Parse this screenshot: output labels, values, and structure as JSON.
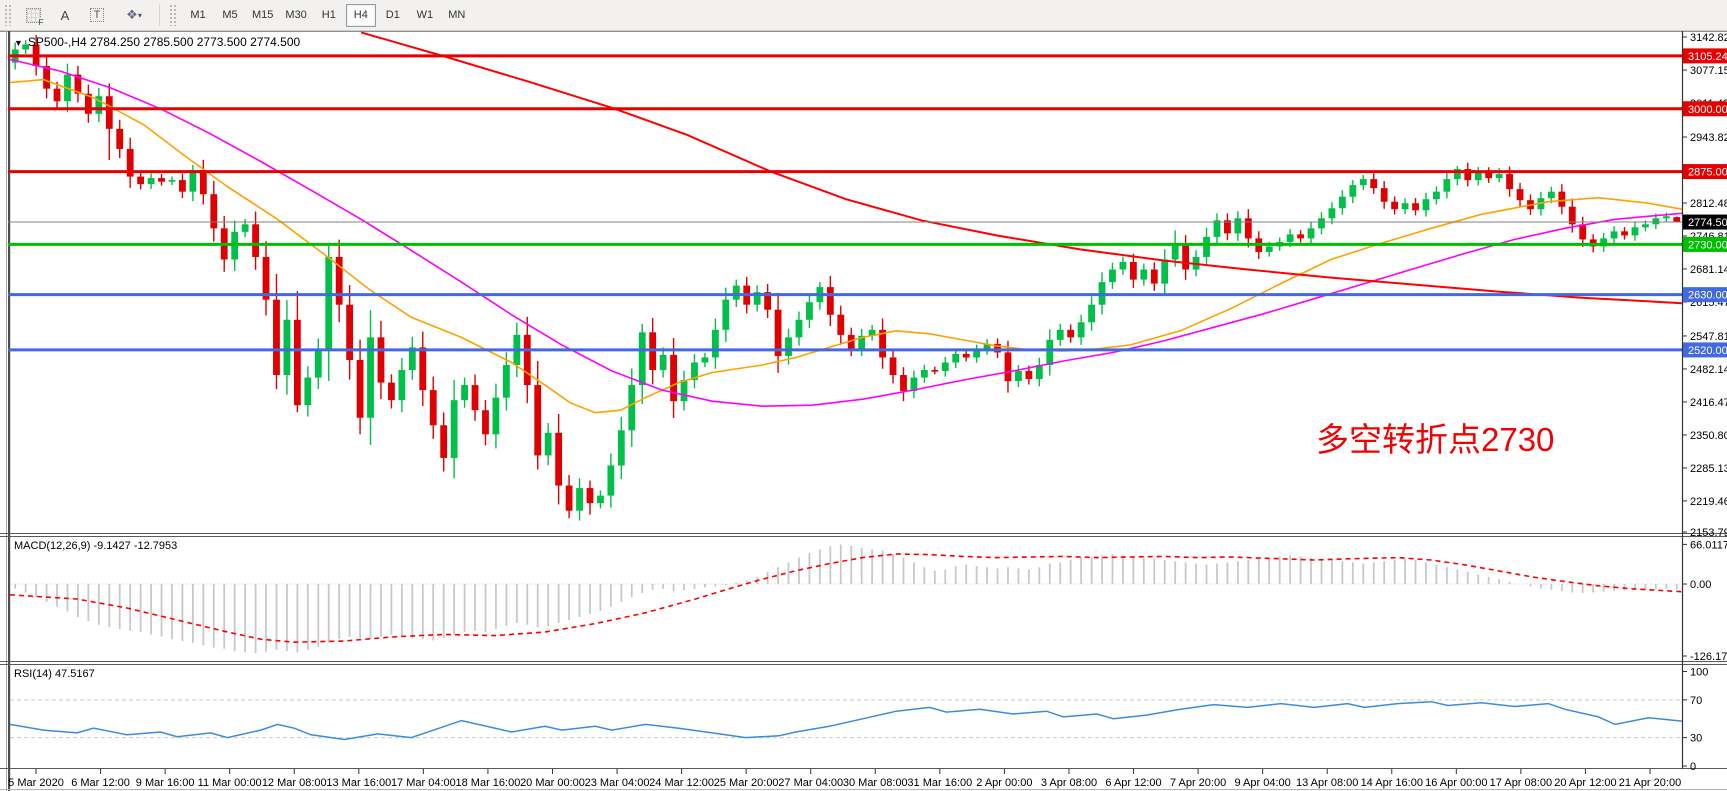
{
  "toolbar": {
    "icons": {
      "grid_f": "F",
      "a_label": "A",
      "t_label": "T",
      "objects": "❖",
      "caret": "▾"
    },
    "timeframes": [
      "M1",
      "M5",
      "M15",
      "M30",
      "H1",
      "H4",
      "D1",
      "W1",
      "MN"
    ],
    "active_timeframe": "H4"
  },
  "header": {
    "dropdown_glyph": "▼",
    "symbol_line": "SP500-,H4  2784.250 2785.500 2773.500 2774.500"
  },
  "annotation": {
    "text": "多空转折点2730",
    "color": "#f40000"
  },
  "macd_panel": {
    "label": "MACD(12,26,9) -9.1427 -12.7953",
    "axis_labels": [
      "66.0117",
      "0.00",
      "-126.173"
    ]
  },
  "rsi_panel": {
    "label": "RSI(14) 47.5167",
    "axis_labels": [
      "100",
      "70",
      "30",
      "0"
    ]
  },
  "chart_data": {
    "type": "candlestick",
    "symbol": "SP500-",
    "timeframe": "H4",
    "current_ohlc": {
      "open": 2784.25,
      "high": 2785.5,
      "low": 2773.5,
      "close": 2774.5
    },
    "ylim": [
      2153.79,
      3150.8
    ],
    "price_axis_ticks": [
      {
        "label": "3142.820",
        "p": 3142.82
      },
      {
        "label": "3077.150",
        "p": 3077.15
      },
      {
        "label": "3011.490",
        "p": 3011.49
      },
      {
        "label": "2943.820",
        "p": 2943.82
      },
      {
        "label": "2812.480",
        "p": 2812.48
      },
      {
        "label": "2746.810",
        "p": 2746.81
      },
      {
        "label": "2681.140",
        "p": 2681.14
      },
      {
        "label": "2615.470",
        "p": 2615.47
      },
      {
        "label": "2547.810",
        "p": 2547.81
      },
      {
        "label": "2482.140",
        "p": 2482.14
      },
      {
        "label": "2416.470",
        "p": 2416.47
      },
      {
        "label": "2350.800",
        "p": 2350.8
      },
      {
        "label": "2285.130",
        "p": 2285.13
      },
      {
        "label": "2219.460",
        "p": 2219.46
      },
      {
        "label": "2153.790",
        "p": 2157.5
      }
    ],
    "price_badges": [
      {
        "label": "3105.244",
        "p": 3105.244,
        "bg": "#e80000",
        "fg": "#ffffff"
      },
      {
        "label": "3000.000",
        "p": 3000.0,
        "bg": "#e80000",
        "fg": "#ffffff"
      },
      {
        "label": "2875.000",
        "p": 2875.0,
        "bg": "#e80000",
        "fg": "#ffffff"
      },
      {
        "label": "2774.500",
        "p": 2774.5,
        "bg": "#000000",
        "fg": "#ffffff"
      },
      {
        "label": "2730.000",
        "p": 2730.0,
        "bg": "#00be00",
        "fg": "#ffffff"
      },
      {
        "label": "2630.000",
        "p": 2630.0,
        "bg": "#4169e1",
        "fg": "#ffffff"
      },
      {
        "label": "2520.000",
        "p": 2520.0,
        "bg": "#4169e1",
        "fg": "#ffffff"
      }
    ],
    "level_lines": [
      {
        "p": 3105.244,
        "color": "#e80000",
        "w": 3
      },
      {
        "p": 3000.0,
        "color": "#e80000",
        "w": 3
      },
      {
        "p": 2875.0,
        "color": "#e80000",
        "w": 3
      },
      {
        "p": 2730.0,
        "color": "#00be00",
        "w": 3
      },
      {
        "p": 2630.0,
        "color": "#4169e1",
        "w": 3
      },
      {
        "p": 2520.0,
        "color": "#4169e1",
        "w": 3
      }
    ],
    "current_price_line": {
      "p": 2774.5,
      "color": "#808080",
      "w": 1
    },
    "colors": {
      "up": "#00c04a",
      "down": "#e00000",
      "ma_fast": "#ffa200",
      "ma_mid": "#ff00ff",
      "ma_slow": "#ff0000",
      "macd_bar": "#c8c8c8",
      "macd_signal": "#ff0000",
      "rsi": "#3c8bdc"
    },
    "candles": {
      "first_open": 3092,
      "closes": [
        3118,
        3128,
        3085,
        3040,
        3015,
        3068,
        3030,
        2990,
        3025,
        2960,
        2920,
        2865,
        2850,
        2862,
        2855,
        2858,
        2835,
        2878,
        2830,
        2762,
        2700,
        2755,
        2770,
        2705,
        2620,
        2470,
        2580,
        2410,
        2465,
        2520,
        2705,
        2610,
        2500,
        2385,
        2545,
        2455,
        2420,
        2480,
        2525,
        2440,
        2370,
        2305,
        2420,
        2450,
        2400,
        2352,
        2425,
        2490,
        2550,
        2450,
        2310,
        2355,
        2250,
        2200,
        2245,
        2215,
        2230,
        2290,
        2360,
        2450,
        2555,
        2480,
        2510,
        2418,
        2460,
        2495,
        2505,
        2560,
        2620,
        2648,
        2610,
        2635,
        2600,
        2508,
        2545,
        2580,
        2615,
        2645,
        2590,
        2550,
        2522,
        2548,
        2560,
        2505,
        2470,
        2438,
        2465,
        2480,
        2478,
        2495,
        2512,
        2505,
        2520,
        2532,
        2515,
        2458,
        2478,
        2462,
        2490,
        2540,
        2560,
        2545,
        2575,
        2610,
        2655,
        2680,
        2695,
        2660,
        2680,
        2652,
        2700,
        2728,
        2680,
        2705,
        2745,
        2778,
        2752,
        2782,
        2742,
        2715,
        2726,
        2735,
        2750,
        2742,
        2762,
        2782,
        2802,
        2825,
        2848,
        2860,
        2842,
        2815,
        2800,
        2812,
        2798,
        2820,
        2835,
        2860,
        2880,
        2858,
        2874,
        2862,
        2870,
        2840,
        2818,
        2800,
        2822,
        2835,
        2805,
        2770,
        2740,
        2726,
        2742,
        2756,
        2748,
        2764,
        2770,
        2782,
        2786,
        2774.5
      ],
      "overrides": {
        "9": {
          "low": 2898
        },
        "17": {
          "high": 2888
        },
        "25": {
          "low": 2442
        },
        "27": {
          "low": 2396
        },
        "30": {
          "high": 2732
        },
        "33": {
          "low": 2352
        },
        "38": {
          "high": 2546
        },
        "41": {
          "low": 2278
        },
        "45": {
          "low": 2330
        },
        "50": {
          "low": 2282
        },
        "53": {
          "low": 2185
        },
        "55": {
          "low": 2192
        },
        "60": {
          "high": 2572
        },
        "69": {
          "high": 2660
        },
        "77": {
          "high": 2655
        },
        "85": {
          "low": 2418
        },
        "111": {
          "high": 2758
        },
        "115": {
          "high": 2792
        },
        "117": {
          "high": 2796
        },
        "128": {
          "high": 2858
        },
        "129": {
          "high": 2868
        },
        "138": {
          "high": 2886
        },
        "140": {
          "high": 2884
        },
        "142": {
          "high": 2882
        },
        "151": {
          "low": 2714
        },
        "159": {
          "open": 2784.25,
          "high": 2785.5,
          "low": 2773.5
        }
      }
    },
    "ma_fast_points": [
      [
        0,
        3052
      ],
      [
        0.02,
        3058
      ],
      [
        0.05,
        3022
      ],
      [
        0.08,
        2968
      ],
      [
        0.105,
        2905
      ],
      [
        0.13,
        2845
      ],
      [
        0.16,
        2780
      ],
      [
        0.19,
        2705
      ],
      [
        0.215,
        2640
      ],
      [
        0.24,
        2585
      ],
      [
        0.27,
        2545
      ],
      [
        0.3,
        2495
      ],
      [
        0.32,
        2450
      ],
      [
        0.335,
        2415
      ],
      [
        0.35,
        2395
      ],
      [
        0.365,
        2400
      ],
      [
        0.38,
        2425
      ],
      [
        0.4,
        2455
      ],
      [
        0.42,
        2475
      ],
      [
        0.45,
        2490
      ],
      [
        0.47,
        2505
      ],
      [
        0.49,
        2525
      ],
      [
        0.51,
        2545
      ],
      [
        0.53,
        2558
      ],
      [
        0.55,
        2552
      ],
      [
        0.57,
        2540
      ],
      [
        0.59,
        2528
      ],
      [
        0.61,
        2520
      ],
      [
        0.63,
        2518
      ],
      [
        0.65,
        2522
      ],
      [
        0.67,
        2530
      ],
      [
        0.7,
        2558
      ],
      [
        0.73,
        2602
      ],
      [
        0.76,
        2652
      ],
      [
        0.79,
        2700
      ],
      [
        0.82,
        2732
      ],
      [
        0.85,
        2762
      ],
      [
        0.88,
        2790
      ],
      [
        0.92,
        2815
      ],
      [
        0.95,
        2823
      ],
      [
        0.98,
        2812
      ],
      [
        1,
        2800
      ]
    ],
    "ma_mid_points": [
      [
        0,
        3098
      ],
      [
        0.03,
        3075
      ],
      [
        0.06,
        3042
      ],
      [
        0.09,
        3000
      ],
      [
        0.12,
        2950
      ],
      [
        0.15,
        2895
      ],
      [
        0.18,
        2838
      ],
      [
        0.21,
        2780
      ],
      [
        0.24,
        2718
      ],
      [
        0.27,
        2655
      ],
      [
        0.3,
        2590
      ],
      [
        0.33,
        2530
      ],
      [
        0.36,
        2478
      ],
      [
        0.39,
        2440
      ],
      [
        0.42,
        2418
      ],
      [
        0.45,
        2408
      ],
      [
        0.48,
        2410
      ],
      [
        0.51,
        2422
      ],
      [
        0.54,
        2440
      ],
      [
        0.57,
        2460
      ],
      [
        0.6,
        2478
      ],
      [
        0.63,
        2498
      ],
      [
        0.66,
        2515
      ],
      [
        0.69,
        2538
      ],
      [
        0.72,
        2565
      ],
      [
        0.75,
        2592
      ],
      [
        0.78,
        2622
      ],
      [
        0.81,
        2652
      ],
      [
        0.84,
        2682
      ],
      [
        0.87,
        2712
      ],
      [
        0.9,
        2740
      ],
      [
        0.93,
        2762
      ],
      [
        0.96,
        2780
      ],
      [
        1,
        2792
      ]
    ],
    "ma_slow_points": [
      [
        0.21,
        3152
      ],
      [
        0.26,
        3104
      ],
      [
        0.31,
        3054
      ],
      [
        0.36,
        3002
      ],
      [
        0.405,
        2948
      ],
      [
        0.455,
        2875
      ],
      [
        0.5,
        2820
      ],
      [
        0.545,
        2778
      ],
      [
        0.59,
        2748
      ],
      [
        0.64,
        2720
      ],
      [
        0.69,
        2698
      ],
      [
        0.74,
        2680
      ],
      [
        0.79,
        2664
      ],
      [
        0.84,
        2650
      ],
      [
        0.89,
        2636
      ],
      [
        0.94,
        2624
      ],
      [
        1,
        2613
      ]
    ],
    "macd": {
      "values_last": [
        -9.1427,
        -12.7953
      ],
      "ylim": [
        -126.173,
        66.0117
      ],
      "histogram": [
        -8,
        -14,
        -22,
        -30,
        -38,
        -46,
        -55,
        -62,
        -68,
        -72,
        -75,
        -78,
        -80,
        -84,
        -88,
        -92,
        -95,
        -98,
        -102,
        -106,
        -108,
        -112,
        -114,
        -115,
        -113,
        -110,
        -112,
        -114,
        -110,
        -105,
        -98,
        -92,
        -88,
        -90,
        -92,
        -88,
        -85,
        -88,
        -90,
        -92,
        -94,
        -90,
        -85,
        -80,
        -78,
        -80,
        -75,
        -70,
        -65,
        -68,
        -72,
        -70,
        -65,
        -60,
        -55,
        -50,
        -45,
        -38,
        -30,
        -22,
        -15,
        -10,
        -8,
        -12,
        -10,
        -8,
        -6,
        -4,
        -2,
        2,
        6,
        12,
        20,
        28,
        36,
        44,
        52,
        58,
        63,
        66,
        64,
        60,
        58,
        56,
        50,
        44,
        36,
        28,
        22,
        24,
        30,
        32,
        30,
        28,
        26,
        28,
        26,
        24,
        28,
        34,
        36,
        40,
        44,
        46,
        48,
        50,
        48,
        46,
        44,
        42,
        40,
        38,
        36,
        34,
        32,
        34,
        36,
        38,
        40,
        42,
        44,
        46,
        48,
        46,
        44,
        42,
        40,
        38,
        36,
        34,
        36,
        38,
        40,
        42,
        40,
        36,
        32,
        28,
        24,
        20,
        16,
        12,
        8,
        4,
        0,
        -4,
        -8,
        -10,
        -12,
        -14,
        -15,
        -14,
        -13,
        -12,
        -11,
        -10,
        -10,
        -9,
        -9,
        -9.1
      ],
      "signal_points": [
        [
          0,
          -18
        ],
        [
          0.04,
          -25
        ],
        [
          0.07,
          -40
        ],
        [
          0.1,
          -60
        ],
        [
          0.13,
          -80
        ],
        [
          0.15,
          -92
        ],
        [
          0.17,
          -97
        ],
        [
          0.2,
          -95
        ],
        [
          0.23,
          -88
        ],
        [
          0.26,
          -84
        ],
        [
          0.29,
          -86
        ],
        [
          0.32,
          -80
        ],
        [
          0.35,
          -66
        ],
        [
          0.38,
          -48
        ],
        [
          0.41,
          -25
        ],
        [
          0.43,
          -8
        ],
        [
          0.45,
          8
        ],
        [
          0.47,
          22
        ],
        [
          0.49,
          34
        ],
        [
          0.51,
          44
        ],
        [
          0.53,
          50
        ],
        [
          0.55,
          49
        ],
        [
          0.57,
          46
        ],
        [
          0.59,
          44
        ],
        [
          0.61,
          45
        ],
        [
          0.63,
          46
        ],
        [
          0.65,
          44
        ],
        [
          0.67,
          45
        ],
        [
          0.69,
          46
        ],
        [
          0.71,
          44
        ],
        [
          0.73,
          45
        ],
        [
          0.75,
          43
        ],
        [
          0.78,
          40
        ],
        [
          0.8,
          42
        ],
        [
          0.83,
          44
        ],
        [
          0.85,
          40
        ],
        [
          0.87,
          32
        ],
        [
          0.89,
          22
        ],
        [
          0.91,
          12
        ],
        [
          0.93,
          4
        ],
        [
          0.95,
          -3
        ],
        [
          0.97,
          -8
        ],
        [
          1,
          -12.8
        ]
      ]
    },
    "rsi": {
      "value_last": 47.5167,
      "levels": [
        70,
        30
      ],
      "ylim": [
        0,
        100
      ],
      "points": [
        [
          0,
          44
        ],
        [
          0.02,
          38
        ],
        [
          0.04,
          35
        ],
        [
          0.05,
          40
        ],
        [
          0.07,
          33
        ],
        [
          0.09,
          36
        ],
        [
          0.1,
          31
        ],
        [
          0.12,
          35
        ],
        [
          0.13,
          30
        ],
        [
          0.15,
          38
        ],
        [
          0.16,
          44
        ],
        [
          0.17,
          40
        ],
        [
          0.18,
          33
        ],
        [
          0.2,
          28
        ],
        [
          0.22,
          34
        ],
        [
          0.24,
          30
        ],
        [
          0.26,
          42
        ],
        [
          0.27,
          48
        ],
        [
          0.28,
          44
        ],
        [
          0.3,
          36
        ],
        [
          0.32,
          42
        ],
        [
          0.33,
          38
        ],
        [
          0.35,
          42
        ],
        [
          0.36,
          38
        ],
        [
          0.38,
          44
        ],
        [
          0.4,
          40
        ],
        [
          0.42,
          35
        ],
        [
          0.44,
          30
        ],
        [
          0.46,
          32
        ],
        [
          0.47,
          36
        ],
        [
          0.49,
          42
        ],
        [
          0.51,
          50
        ],
        [
          0.53,
          58
        ],
        [
          0.55,
          62
        ],
        [
          0.56,
          57
        ],
        [
          0.58,
          60
        ],
        [
          0.6,
          55
        ],
        [
          0.62,
          58
        ],
        [
          0.63,
          52
        ],
        [
          0.65,
          55
        ],
        [
          0.66,
          50
        ],
        [
          0.68,
          54
        ],
        [
          0.7,
          60
        ],
        [
          0.72,
          65
        ],
        [
          0.74,
          62
        ],
        [
          0.76,
          66
        ],
        [
          0.78,
          62
        ],
        [
          0.8,
          66
        ],
        [
          0.81,
          62
        ],
        [
          0.83,
          66
        ],
        [
          0.85,
          68
        ],
        [
          0.86,
          64
        ],
        [
          0.88,
          67
        ],
        [
          0.9,
          63
        ],
        [
          0.92,
          66
        ],
        [
          0.93,
          60
        ],
        [
          0.95,
          52
        ],
        [
          0.96,
          44
        ],
        [
          0.98,
          51
        ],
        [
          1,
          47.5
        ]
      ]
    },
    "x_labels": [
      "5 Mar 2020",
      "6 Mar 12:00",
      "9 Mar 16:00",
      "11 Mar 00:00",
      "12 Mar 08:00",
      "13 Mar 16:00",
      "17 Mar 04:00",
      "18 Mar 16:00",
      "20 Mar 00:00",
      "23 Mar 04:00",
      "24 Mar 12:00",
      "25 Mar 20:00",
      "27 Mar 04:00",
      "30 Mar 08:00",
      "31 Mar 16:00",
      "2 Apr 00:00",
      "3 Apr 08:00",
      "6 Apr 12:00",
      "7 Apr 20:00",
      "9 Apr 04:00",
      "13 Apr 08:00",
      "14 Apr 16:00",
      "16 Apr 00:00",
      "17 Apr 08:00",
      "20 Apr 12:00",
      "21 Apr 20:00"
    ]
  }
}
